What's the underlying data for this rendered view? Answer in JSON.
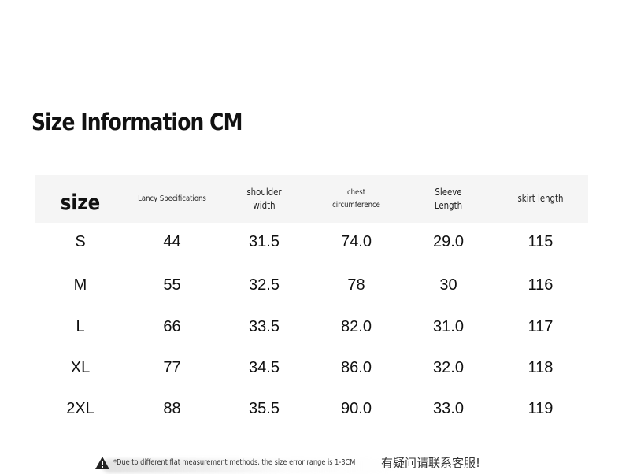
{
  "title": "Size Information CM",
  "table": {
    "headers": [
      [
        "size"
      ],
      [
        "Lancy Specifications"
      ],
      [
        "shoulder",
        "width"
      ],
      [
        "chest",
        "circumference"
      ],
      [
        "Sleeve",
        "Length"
      ],
      [
        "skirt length"
      ]
    ],
    "rows": [
      [
        "S",
        "44",
        "31.5",
        "74.0",
        "29.0",
        "115"
      ],
      [
        "M",
        "55",
        "32.5",
        "78",
        "30",
        "116"
      ],
      [
        "L",
        "66",
        "33.5",
        "82.0",
        "31.0",
        "117"
      ],
      [
        "XL",
        "77",
        "34.5",
        "86.0",
        "32.0",
        "118"
      ],
      [
        "2XL",
        "88",
        "35.5",
        "90.0",
        "33.0",
        "119"
      ]
    ]
  },
  "note": {
    "icon": "warning-icon",
    "text": "*Due to different flat measurement methods, the size error range is 1-3CM",
    "text_cn": "有疑问请联系客服!"
  }
}
